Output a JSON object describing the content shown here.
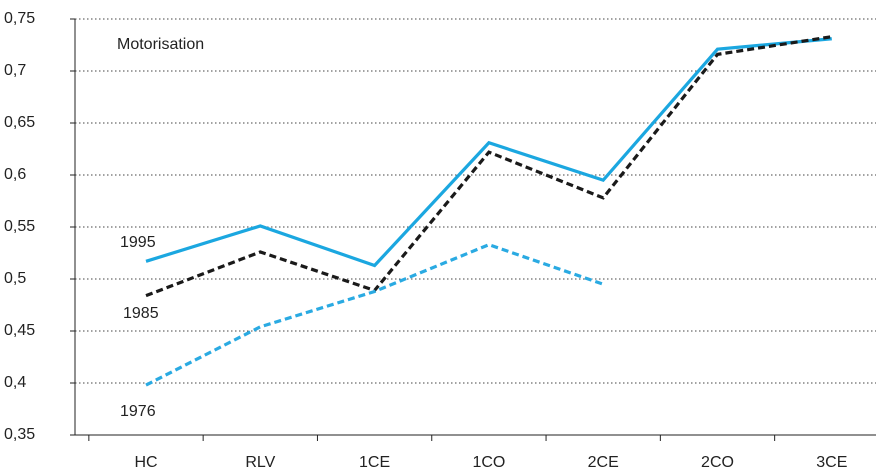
{
  "chart_data": {
    "type": "line",
    "annotation": "Motorisation",
    "categories": [
      "HC",
      "RLV",
      "1CE",
      "1CO",
      "2CE",
      "2CO",
      "3CE"
    ],
    "series": [
      {
        "name": "1995",
        "color": "#1ba7e0",
        "style": "solid",
        "values": [
          0.517,
          0.551,
          0.513,
          0.631,
          0.595,
          0.721,
          0.731
        ]
      },
      {
        "name": "1985",
        "color": "#1a1a1a",
        "style": "dashed",
        "values": [
          0.484,
          0.526,
          0.489,
          0.622,
          0.578,
          0.716,
          0.733
        ]
      },
      {
        "name": "1976",
        "color": "#2aaae2",
        "style": "dashed",
        "values": [
          0.398,
          0.454,
          0.488,
          0.533,
          0.495,
          null,
          null
        ]
      }
    ],
    "ylim": [
      0.35,
      0.75
    ],
    "yticks": [
      {
        "value": 0.35,
        "label": "0,35"
      },
      {
        "value": 0.4,
        "label": "0,4"
      },
      {
        "value": 0.45,
        "label": "0,45"
      },
      {
        "value": 0.5,
        "label": "0,5"
      },
      {
        "value": 0.55,
        "label": "0,55"
      },
      {
        "value": 0.6,
        "label": "0,6"
      },
      {
        "value": 0.65,
        "label": "0,65"
      },
      {
        "value": 0.7,
        "label": "0,7"
      },
      {
        "value": 0.75,
        "label": "0,75"
      }
    ],
    "grid": true
  }
}
